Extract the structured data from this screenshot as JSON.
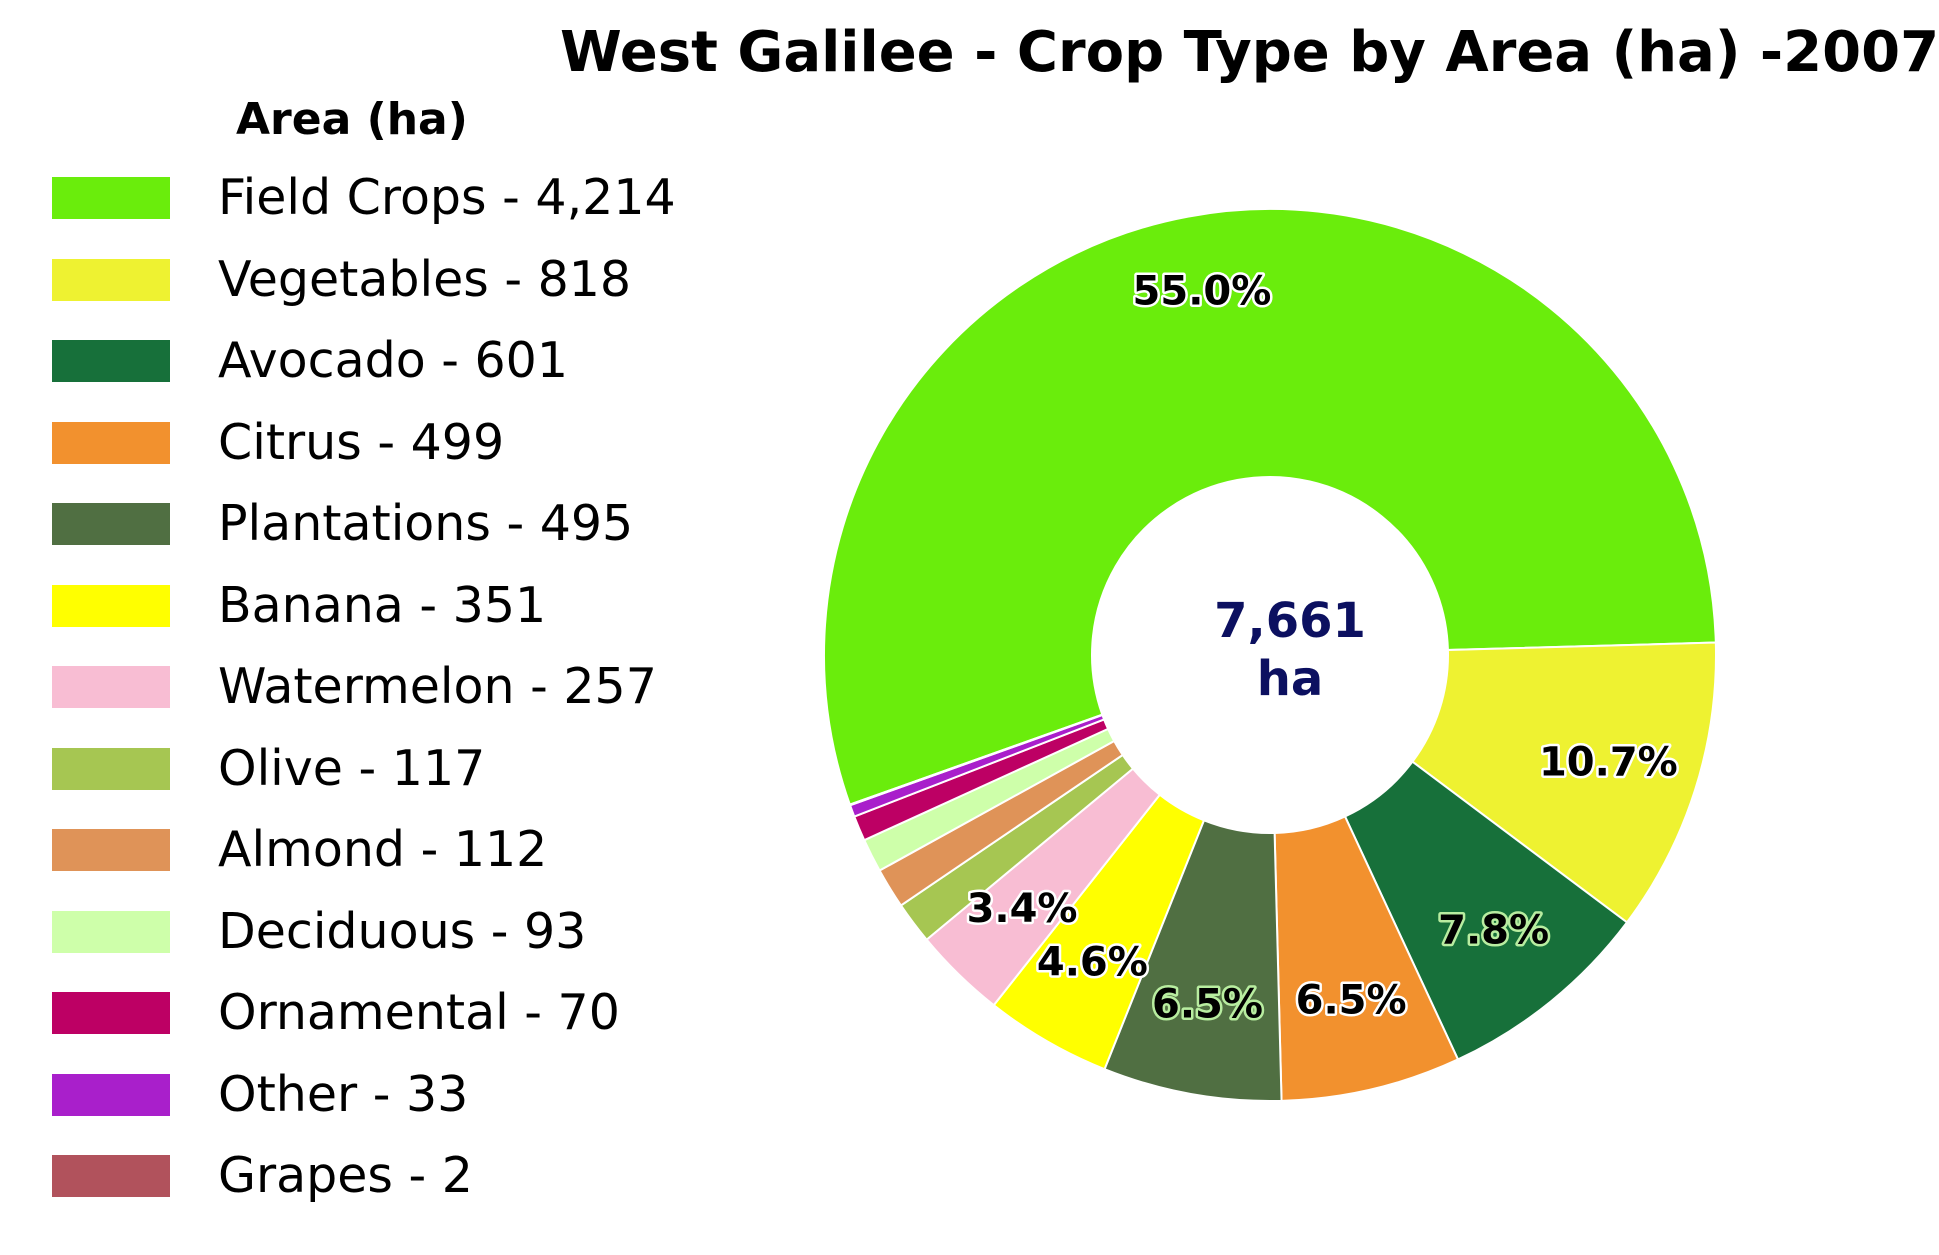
{
  "chart_data": {
    "type": "pie",
    "title": "West Galilee - Crop Type by Area (ha) -2007",
    "legend_title": "Area (ha)",
    "legend_position": "left",
    "donut": true,
    "center_value": "7,661",
    "center_unit": "ha",
    "slices": [
      {
        "name": "Field Crops",
        "value": 4214,
        "legend_label": "Field Crops - 4,214",
        "color": "#6aed0c",
        "pct_label": "55.0%",
        "label_fill": "#000000",
        "label_stroke": "#ffffff"
      },
      {
        "name": "Vegetables",
        "value": 818,
        "legend_label": "Vegetables - 818",
        "color": "#eef231",
        "pct_label": "10.7%",
        "label_fill": "#000000",
        "label_stroke": "#ffffff"
      },
      {
        "name": "Avocado",
        "value": 601,
        "legend_label": "Avocado - 601",
        "color": "#17703a",
        "pct_label": "7.8%",
        "label_fill": "#000000",
        "label_stroke": "#b8eda0"
      },
      {
        "name": "Citrus",
        "value": 499,
        "legend_label": "Citrus - 499",
        "color": "#f2912e",
        "pct_label": "6.5%",
        "label_fill": "#000000",
        "label_stroke": "#ffffff"
      },
      {
        "name": "Plantations",
        "value": 495,
        "legend_label": "Plantations - 495",
        "color": "#506f42",
        "pct_label": "6.5%",
        "label_fill": "#000000",
        "label_stroke": "#b8eda0"
      },
      {
        "name": "Banana",
        "value": 351,
        "legend_label": "Banana - 351",
        "color": "#ffff00",
        "pct_label": "4.6%",
        "label_fill": "#000000",
        "label_stroke": "#ffffff"
      },
      {
        "name": "Watermelon",
        "value": 257,
        "legend_label": "Watermelon - 257",
        "color": "#f8bdd3",
        "pct_label": "3.4%",
        "label_fill": "#000000",
        "label_stroke": "#ffffff"
      },
      {
        "name": "Olive",
        "value": 117,
        "legend_label": "Olive - 117",
        "color": "#a6c652",
        "pct_label": "",
        "label_fill": "#000000",
        "label_stroke": "#ffffff"
      },
      {
        "name": "Almond",
        "value": 112,
        "legend_label": "Almond - 112",
        "color": "#df9358",
        "pct_label": "",
        "label_fill": "#000000",
        "label_stroke": "#ffffff"
      },
      {
        "name": "Deciduous",
        "value": 93,
        "legend_label": "Deciduous - 93",
        "color": "#ceffaa",
        "pct_label": "",
        "label_fill": "#000000",
        "label_stroke": "#ffffff"
      },
      {
        "name": "Ornamental",
        "value": 70,
        "legend_label": "Ornamental - 70",
        "color": "#bd0064",
        "pct_label": "",
        "label_fill": "#000000",
        "label_stroke": "#ffffff"
      },
      {
        "name": "Other",
        "value": 33,
        "legend_label": "Other - 33",
        "color": "#a91fcb",
        "pct_label": "",
        "label_fill": "#000000",
        "label_stroke": "#ffffff"
      },
      {
        "name": "Grapes",
        "value": 2,
        "legend_label": "Grapes - 2",
        "color": "#b1525c",
        "pct_label": "",
        "label_fill": "#000000",
        "label_stroke": "#ffffff"
      }
    ]
  }
}
